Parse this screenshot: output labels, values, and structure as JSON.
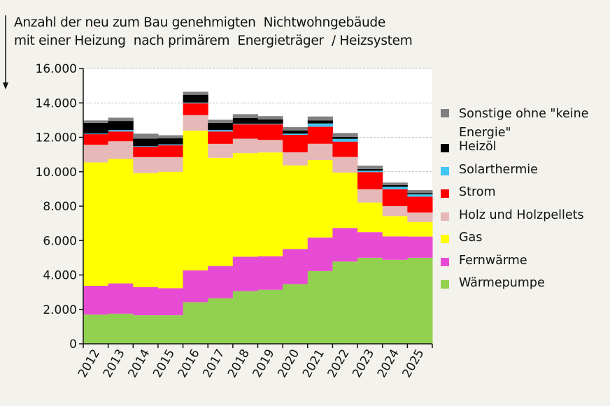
{
  "chart_data": {
    "type": "bar",
    "stacked": true,
    "title_lines": [
      "Anzahl der neu zum Bau genehmigten  Nichtwohngebäude",
      "mit einer Heizung  nach primärem  Energieträger  / Heizsystem"
    ],
    "xlabel": "",
    "ylabel": "",
    "ylim": [
      0,
      16000
    ],
    "yticks": [
      "0",
      "2.000",
      "4.000",
      "6.000",
      "8.000",
      "10.000",
      "12.000",
      "14.000",
      "16.000"
    ],
    "ytick_values": [
      0,
      2000,
      4000,
      6000,
      8000,
      10000,
      12000,
      14000,
      16000
    ],
    "grid": "horizontal dashed",
    "legend_position": "right",
    "categories": [
      "2012",
      "2013",
      "2014",
      "2015",
      "2016",
      "2017",
      "2018",
      "2019",
      "2020",
      "2021",
      "2022",
      "2023",
      "2024",
      "2025"
    ],
    "series": [
      {
        "name": "Wärmepumpe",
        "color": "#92d050",
        "values": [
          1700,
          1750,
          1660,
          1660,
          2420,
          2650,
          3060,
          3140,
          3470,
          4230,
          4780,
          5000,
          4880,
          5000
        ]
      },
      {
        "name": "Fernwärme",
        "color": "#e84bd3",
        "values": [
          1670,
          1760,
          1630,
          1570,
          1850,
          1870,
          2000,
          1950,
          2040,
          1950,
          1950,
          1490,
          1360,
          1230
        ]
      },
      {
        "name": "Gas",
        "color": "#ffff00",
        "values": [
          7170,
          7230,
          6630,
          6770,
          8120,
          6290,
          6020,
          6030,
          4860,
          4500,
          3220,
          1720,
          1180,
          850
        ]
      },
      {
        "name": "Holz und Holzpellets",
        "color": "#e6b8b7",
        "values": [
          1030,
          1030,
          930,
          850,
          900,
          810,
          840,
          730,
          760,
          945,
          910,
          770,
          580,
          550
        ]
      },
      {
        "name": "Strom",
        "color": "#ff0000",
        "values": [
          610,
          570,
          600,
          690,
          690,
          720,
          835,
          905,
          1015,
          990,
          890,
          1000,
          985,
          920
        ]
      },
      {
        "name": "Solarthermie",
        "color": "#3fc6f4",
        "values": [
          40,
          80,
          30,
          50,
          40,
          80,
          40,
          40,
          70,
          190,
          160,
          80,
          140,
          135
        ]
      },
      {
        "name": "Heizöl",
        "color": "#000000",
        "values": [
          620,
          530,
          440,
          350,
          450,
          420,
          330,
          245,
          185,
          180,
          110,
          95,
          95,
          70
        ]
      },
      {
        "name": "Sonstige ohne \"keine Energie\"",
        "color": "#808080",
        "values": [
          140,
          190,
          290,
          180,
          180,
          180,
          220,
          190,
          190,
          225,
          230,
          200,
          150,
          175
        ]
      }
    ]
  }
}
